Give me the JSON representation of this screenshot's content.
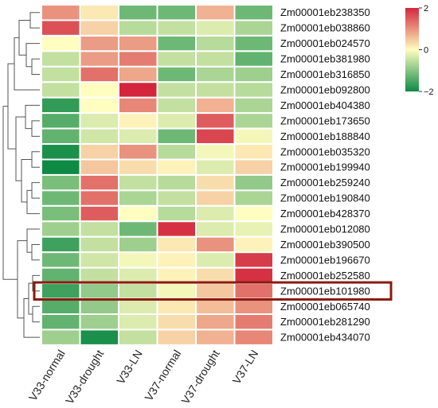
{
  "chart_data": {
    "type": "heatmap",
    "columns": [
      "V33-normal",
      "V33-drought",
      "V33-LN",
      "V37-normal",
      "V37-drought",
      "V37-LN"
    ],
    "rows": [
      "Zm00001eb238350",
      "Zm00001eb038860",
      "Zm00001eb024570",
      "Zm00001eb381980",
      "Zm00001eb316850",
      "Zm00001eb092800",
      "Zm00001eb404380",
      "Zm00001eb173650",
      "Zm00001eb188840",
      "Zm00001eb035320",
      "Zm00001eb199940",
      "Zm00001eb259240",
      "Zm00001eb190840",
      "Zm00001eb428370",
      "Zm00001eb012080",
      "Zm00001eb390500",
      "Zm00001eb196670",
      "Zm00001eb252580",
      "Zm00001eb101980",
      "Zm00001eb065740",
      "Zm00001eb281290",
      "Zm00001eb434070"
    ],
    "values": [
      [
        1.0,
        0.2,
        -1.2,
        -1.2,
        0.7,
        -1.2
      ],
      [
        1.6,
        0.4,
        -0.6,
        -0.5,
        -0.3,
        -0.7
      ],
      [
        0.0,
        0.9,
        0.9,
        -1.2,
        -0.6,
        -1.2
      ],
      [
        -0.5,
        0.9,
        1.2,
        -0.5,
        -0.5,
        -1.3
      ],
      [
        -0.5,
        1.3,
        0.8,
        -1.2,
        -0.7,
        -0.8
      ],
      [
        -0.5,
        0.0,
        2.0,
        -0.5,
        -0.5,
        -0.6
      ],
      [
        -1.7,
        0.0,
        1.1,
        -0.5,
        0.7,
        -0.7
      ],
      [
        -1.4,
        -0.3,
        0.1,
        -0.3,
        1.5,
        -0.7
      ],
      [
        -1.3,
        -0.4,
        -0.3,
        -1.2,
        1.7,
        -0.1
      ],
      [
        -1.9,
        0.4,
        1.0,
        -0.6,
        -0.1,
        0.2
      ],
      [
        -2.0,
        0.5,
        0.3,
        0.1,
        -0.3,
        0.4
      ],
      [
        -1.1,
        1.3,
        -0.5,
        -0.6,
        0.3,
        -0.9
      ],
      [
        -1.2,
        1.3,
        -0.7,
        -0.5,
        0.4,
        -0.7
      ],
      [
        -1.1,
        1.5,
        0.0,
        -0.6,
        -0.3,
        0.0
      ],
      [
        -0.8,
        -0.5,
        -1.2,
        1.9,
        -0.3,
        -0.2
      ],
      [
        -1.6,
        -0.5,
        -0.8,
        0.2,
        1.0,
        0.1
      ],
      [
        -1.2,
        -0.4,
        -0.1,
        0.1,
        -0.3,
        1.8
      ],
      [
        -1.3,
        -0.5,
        -0.3,
        0.1,
        0.3,
        1.9
      ],
      [
        -1.6,
        -0.9,
        -0.5,
        -0.1,
        0.5,
        1.3
      ],
      [
        -1.4,
        -0.9,
        -0.3,
        0.2,
        0.6,
        1.0
      ],
      [
        -1.3,
        -0.8,
        -0.3,
        0.3,
        0.8,
        1.2
      ],
      [
        -0.8,
        -1.9,
        -0.5,
        0.4,
        0.7,
        1.1
      ]
    ],
    "colorbar": {
      "min": -2,
      "max": 2,
      "ticks": [
        2,
        0,
        -2
      ],
      "low_color": "#0e8a45",
      "mid_color": "#fffdc0",
      "high_color": "#d3263c"
    },
    "highlighted_row": "Zm00001eb101980",
    "highlight_color": "#8b1a10",
    "row_dendrogram": true
  }
}
